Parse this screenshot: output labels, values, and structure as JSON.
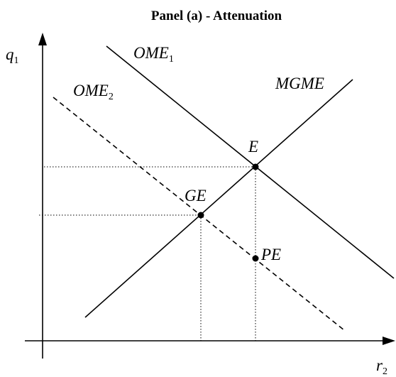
{
  "title": "Panel (a) - Attenuation",
  "axes": {
    "y": {
      "label": "q",
      "sub": "1"
    },
    "x": {
      "label": "r",
      "sub": "2"
    }
  },
  "curves": [
    {
      "label": "OME",
      "sub": "1"
    },
    {
      "label": "OME",
      "sub": "2"
    },
    {
      "label": "MGME"
    }
  ],
  "points": [
    {
      "label": "E"
    },
    {
      "label": "GE"
    },
    {
      "label": "PE"
    }
  ]
}
